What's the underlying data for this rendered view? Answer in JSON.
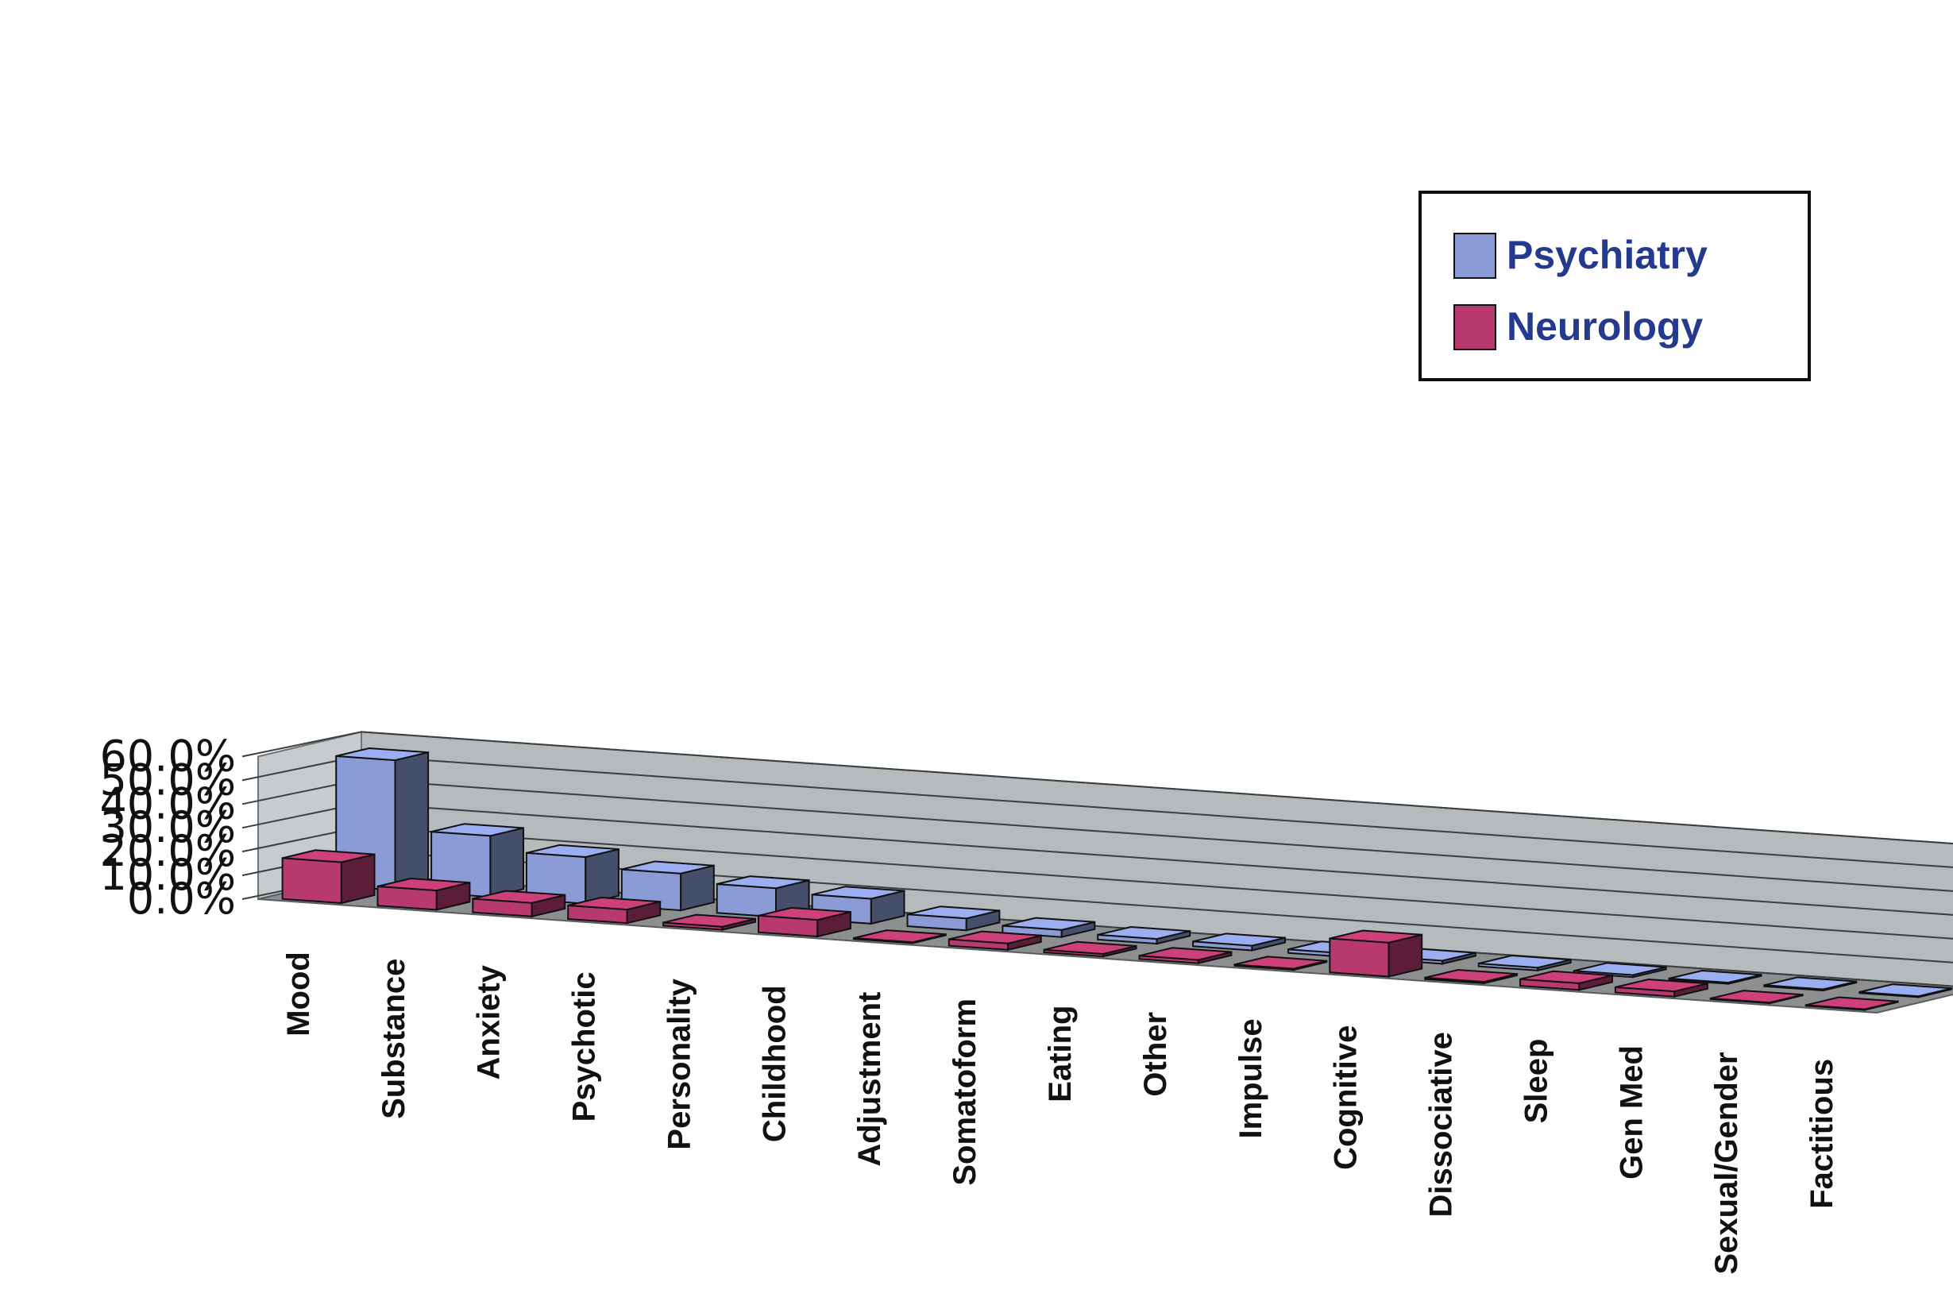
{
  "chart_data": {
    "type": "bar",
    "subtype": "3d-clustered-column",
    "title": "",
    "xlabel": "",
    "ylabel": "",
    "ylim": [
      0,
      60
    ],
    "yticks": [
      "0.0%",
      "10.0%",
      "20.0%",
      "30.0%",
      "40.0%",
      "50.0%",
      "60.0%"
    ],
    "grid": true,
    "legend_position": "top-right",
    "categories": [
      "Mood",
      "Substance",
      "Anxiety",
      "Psychotic",
      "Personality",
      "Childhood",
      "Adjustment",
      "Somatoform",
      "Eating",
      "Other",
      "Impulse",
      "Cognitive",
      "Dissociative",
      "Sleep",
      "Gen Med",
      "Sexual/Gender",
      "Factitious"
    ],
    "series": [
      {
        "name": "Psychiatry",
        "color": "#8a9bd6",
        "values": [
          54.7,
          25.7,
          19.6,
          15.5,
          12.1,
          10.5,
          5.0,
          3.0,
          2.0,
          2.0,
          1.5,
          1.3,
          1.2,
          0.9,
          0.5,
          0.5,
          0.4
        ]
      },
      {
        "name": "Neurology",
        "color": "#b8396d",
        "values": [
          17.2,
          8.1,
          5.7,
          5.7,
          1.3,
          7.0,
          0.4,
          2.7,
          1.1,
          1.4,
          0.5,
          14.3,
          0.6,
          2.8,
          2.2,
          0.3,
          0.3
        ]
      }
    ]
  }
}
